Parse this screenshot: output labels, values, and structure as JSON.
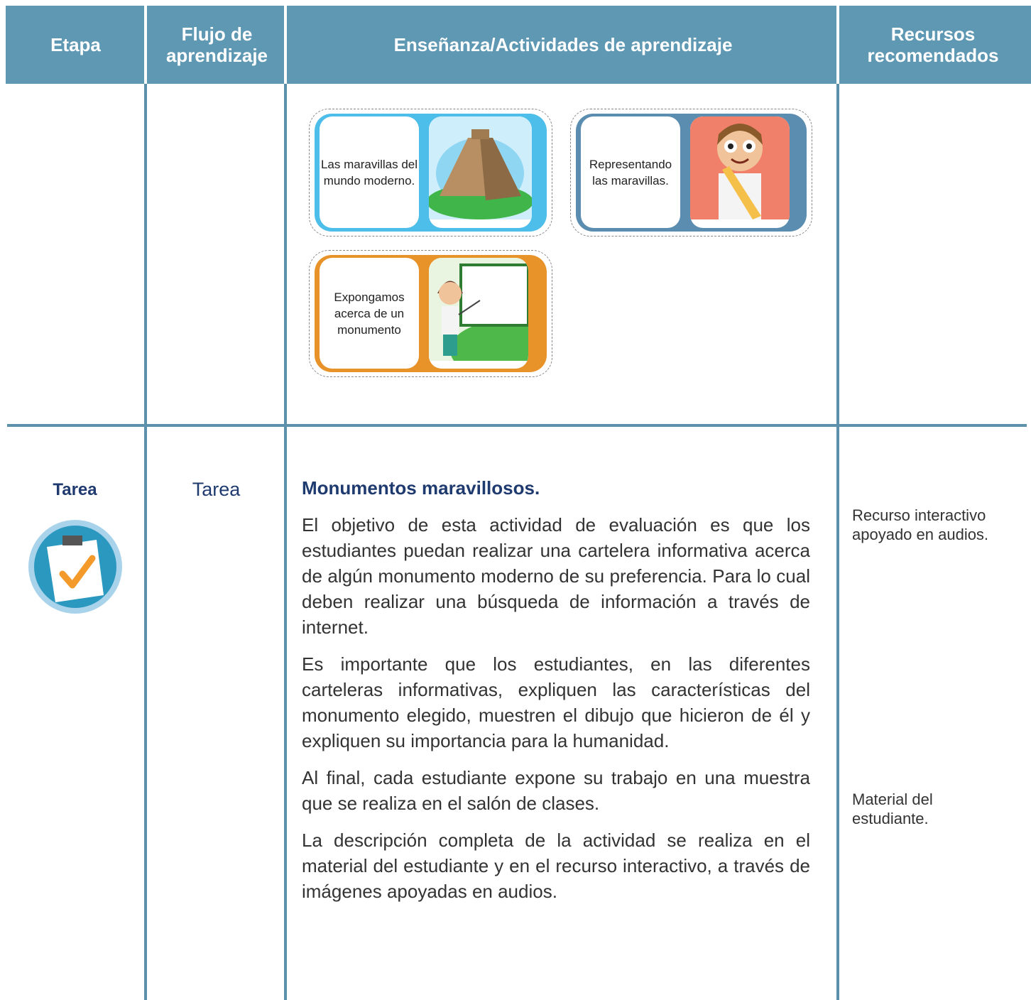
{
  "table": {
    "headers": [
      "Etapa",
      "Flujo de aprendizaje",
      "Enseñanza/Actividades de aprendizaje",
      "Recursos recomendados"
    ],
    "cards": [
      "Las maravillas del mundo moderno.",
      "Representando las maravillas.",
      "Expongamos acerca de un monumento"
    ],
    "task": {
      "stage": "Tarea",
      "flow": "Tarea",
      "title": "Monumentos maravillosos.",
      "paragraphs": [
        "El objetivo de esta actividad de evaluación es que los estudiantes puedan realizar una cartelera informativa acerca de algún monumento moderno de su preferencia. Para lo cual deben realizar una búsqueda de información a través de internet.",
        "Es importante que los estudiantes, en las diferentes carteleras informativas, expliquen las características del monumento elegido, muestren el dibujo que hicieron de él y expliquen su importancia para la humanidad.",
        "Al final, cada estudiante expone su trabajo en una muestra que se realiza en el salón de clases.",
        "La descripción completa de la actividad se realiza en el material del estudiante y en el recurso interactivo, a través de imágenes apoyadas en audios."
      ],
      "resources": [
        "Recurso interactivo apoyado en audios.",
        "Material del estudiante."
      ]
    }
  }
}
